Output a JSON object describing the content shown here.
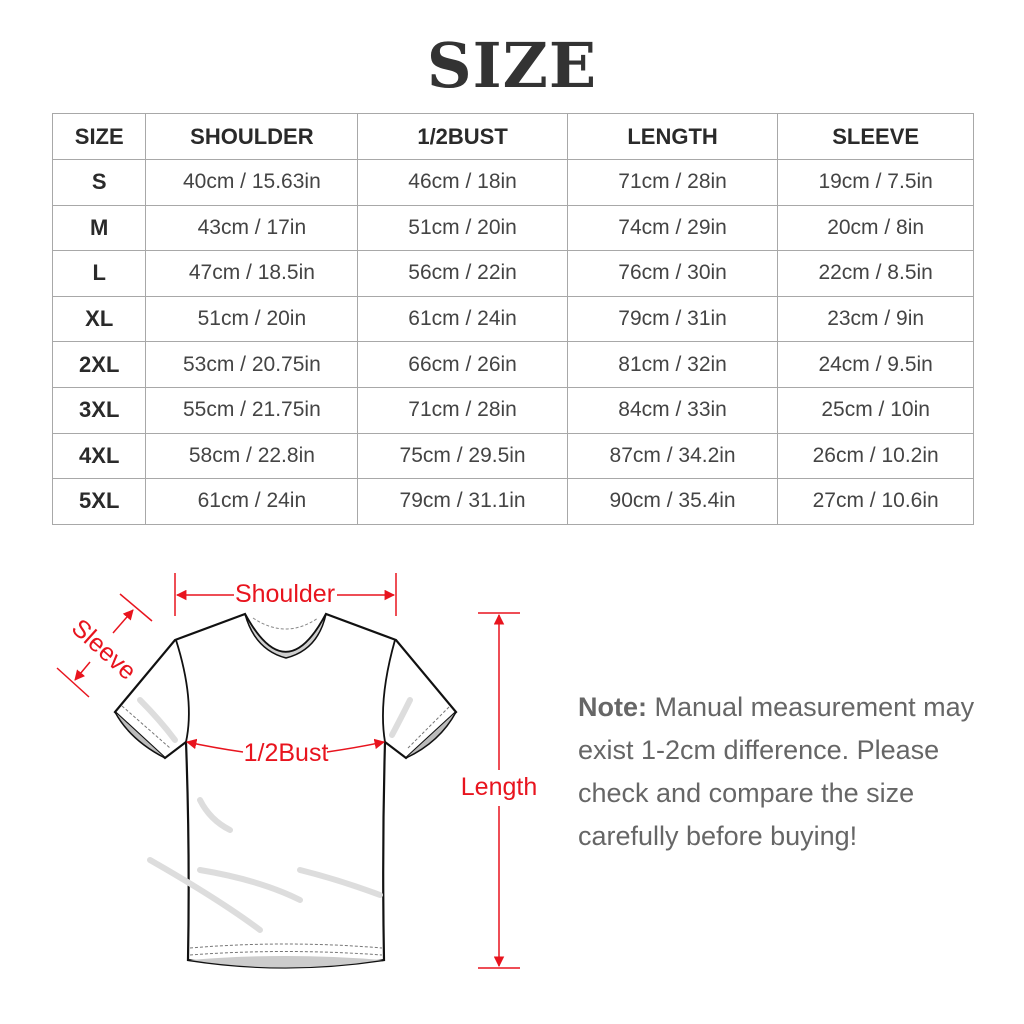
{
  "title": "SIZE",
  "table": {
    "headers": [
      "SIZE",
      "SHOULDER",
      "1/2BUST",
      "LENGTH",
      "SLEEVE"
    ],
    "rows": [
      [
        "S",
        "40cm / 15.63in",
        "46cm / 18in",
        "71cm / 28in",
        "19cm / 7.5in"
      ],
      [
        "M",
        "43cm / 17in",
        "51cm / 20in",
        "74cm / 29in",
        "20cm / 8in"
      ],
      [
        "L",
        "47cm / 18.5in",
        "56cm / 22in",
        "76cm / 30in",
        "22cm / 8.5in"
      ],
      [
        "XL",
        "51cm / 20in",
        "61cm / 24in",
        "79cm / 31in",
        "23cm / 9in"
      ],
      [
        "2XL",
        "53cm / 20.75in",
        "66cm / 26in",
        "81cm / 32in",
        "24cm / 9.5in"
      ],
      [
        "3XL",
        "55cm / 21.75in",
        "71cm / 28in",
        "84cm / 33in",
        "25cm / 10in"
      ],
      [
        "4XL",
        "58cm / 22.8in",
        "75cm / 29.5in",
        "87cm / 34.2in",
        "26cm / 10.2in"
      ],
      [
        "5XL",
        "61cm / 24in",
        "79cm / 31.1in",
        "90cm / 35.4in",
        "27cm / 10.6in"
      ]
    ]
  },
  "diagram": {
    "shoulder": "Shoulder",
    "sleeve": "Sleeve",
    "bust": "1/2Bust",
    "length": "Length",
    "accent_color": "#e8141e"
  },
  "note": {
    "label": "Note:",
    "text": "Manual measurement may exist 1-2cm difference. Please check and compare the size carefully before buying!"
  }
}
